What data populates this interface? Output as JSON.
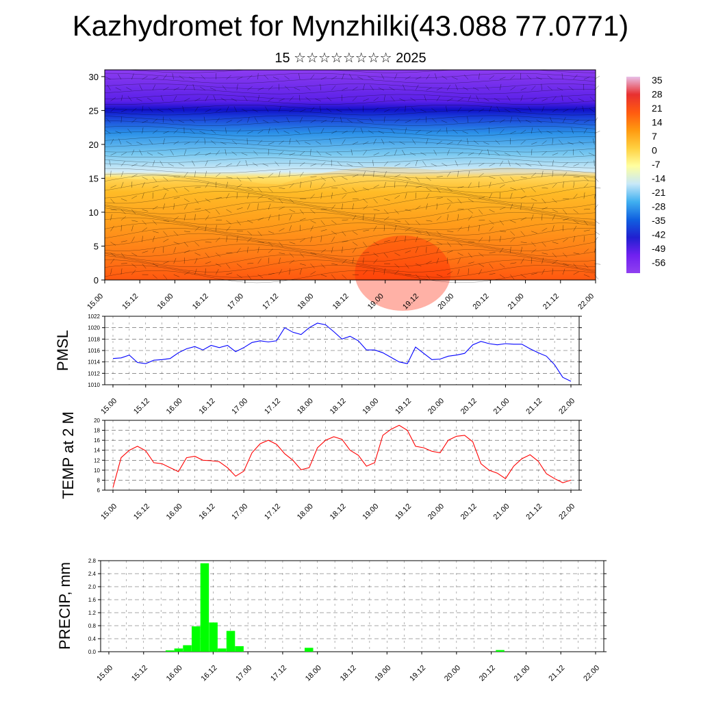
{
  "title": "Kazhydromet for Mynzhilki(43.088 77.0771)",
  "subtitle": "15 ☆☆☆☆☆☆☆☆ 2025",
  "colors": {
    "pmsl_line": "#0000ff",
    "temp_line": "#ff0000",
    "precip_bar": "#00ff00",
    "colorbar": [
      "#e8c0e8",
      "#e83030",
      "#ff5a10",
      "#ff9a10",
      "#ffd040",
      "#ffffa0",
      "#c8e8f8",
      "#40b0f0",
      "#1060e0",
      "#2020d0",
      "#7020f0",
      "#9040f0"
    ]
  },
  "chart_data": [
    {
      "type": "heatmap",
      "name": "temperature-wind-cross-section",
      "x_ticks": [
        "15.00",
        "15.12",
        "16.00",
        "16.12",
        "17.00",
        "17.12",
        "18.00",
        "18.12",
        "19.00",
        "19.12",
        "20.00",
        "20.12",
        "21.00",
        "21.12",
        "22.00"
      ],
      "y_ticks": [
        0,
        5,
        10,
        15,
        20,
        25,
        30
      ],
      "ylim": [
        0,
        31
      ],
      "colorbar_labels": [
        "35",
        "28",
        "21",
        "14",
        "7",
        "0",
        "-7",
        "-14",
        "-21",
        "-28",
        "-35",
        "-42",
        "-49",
        "-56"
      ],
      "colorbar_range": [
        -63,
        42
      ],
      "boundaries": {
        "x": [
          0,
          6,
          12,
          18,
          24,
          30,
          36,
          42,
          48,
          54,
          60,
          66,
          72,
          78,
          84,
          90,
          96,
          102,
          108,
          114,
          120,
          126,
          132,
          138,
          144,
          150,
          156,
          162,
          168
        ],
        "warm_top": [
          15.2,
          15.0,
          14.8,
          14.9,
          15.0,
          15.2,
          15.1,
          15.0,
          14.6,
          14.2,
          14.1,
          14.9,
          15.6,
          16.0,
          16.4,
          16.6,
          16.7,
          16.6,
          16.4,
          16.2,
          16.3,
          16.4,
          16.5,
          16.6,
          16.4,
          16.3,
          16.2,
          16.0,
          15.8
        ],
        "cold_band": [
          25.0,
          25.0,
          25.0,
          25.0,
          25.0,
          25.0,
          25.0,
          25.0,
          25.0,
          25.0,
          25.0,
          25.0,
          25.0,
          25.0,
          25.0,
          25.0,
          25.0,
          25.0,
          25.0,
          25.0,
          25.0,
          25.0,
          25.0,
          25.0,
          25.0,
          25.0,
          25.0,
          25.0,
          25.0
        ]
      },
      "grid": false
    },
    {
      "type": "line",
      "ylabel": "PMSL",
      "x_ticks": [
        "15.00",
        "15.12",
        "16.00",
        "16.12",
        "17.00",
        "17.12",
        "18.00",
        "18.12",
        "19.00",
        "19.12",
        "20.00",
        "20.12",
        "21.00",
        "21.12",
        "22.00"
      ],
      "y_ticks": [
        "1010",
        "1012",
        "1014",
        "1016",
        "1018",
        "1020",
        "1022"
      ],
      "ylim": [
        1010,
        1022
      ],
      "xlim": [
        0,
        168
      ],
      "grid": true,
      "series": [
        {
          "x": [
            0,
            3,
            6,
            9,
            12,
            15,
            18,
            21,
            24,
            27,
            30,
            33,
            36,
            39,
            42,
            45,
            48,
            51,
            54,
            57,
            60,
            63,
            66,
            69,
            72,
            75,
            78,
            81,
            84,
            87,
            90,
            93,
            96,
            99,
            102,
            105,
            108,
            111,
            114,
            117,
            120,
            123,
            126,
            129,
            132,
            135,
            138,
            141,
            144,
            147,
            150,
            153,
            156,
            159,
            162,
            165,
            168
          ],
          "values": [
            1014.6,
            1014.7,
            1015.2,
            1013.9,
            1013.7,
            1014.3,
            1014.4,
            1014.6,
            1015.6,
            1016.3,
            1016.7,
            1016.1,
            1016.9,
            1016.5,
            1016.9,
            1015.8,
            1016.5,
            1017.4,
            1017.7,
            1017.5,
            1017.7,
            1020.0,
            1019.2,
            1018.8,
            1020.0,
            1020.8,
            1020.5,
            1019.3,
            1018.0,
            1018.5,
            1017.7,
            1016.1,
            1016.1,
            1015.6,
            1014.8,
            1014.0,
            1013.7,
            1016.6,
            1015.5,
            1014.4,
            1014.5,
            1015.0,
            1015.2,
            1015.5,
            1017.0,
            1017.6,
            1017.2,
            1017.0,
            1017.2,
            1017.1,
            1017.1,
            1016.3,
            1015.6,
            1015.0,
            1013.5,
            1011.3,
            1010.6
          ]
        }
      ]
    },
    {
      "type": "line",
      "ylabel": "TEMP at 2 M",
      "x_ticks": [
        "15.00",
        "15.12",
        "16.00",
        "16.12",
        "17.00",
        "17.12",
        "18.00",
        "18.12",
        "19.00",
        "19.12",
        "20.00",
        "20.12",
        "21.00",
        "21.12",
        "22.00"
      ],
      "y_ticks": [
        "6",
        "8",
        "10",
        "12",
        "14",
        "16",
        "18",
        "20"
      ],
      "ylim": [
        6,
        20
      ],
      "xlim": [
        0,
        168
      ],
      "grid": true,
      "series": [
        {
          "x": [
            0,
            3,
            6,
            9,
            12,
            15,
            18,
            21,
            24,
            27,
            30,
            33,
            36,
            39,
            42,
            45,
            48,
            51,
            54,
            57,
            60,
            63,
            66,
            69,
            72,
            75,
            78,
            81,
            84,
            87,
            90,
            93,
            96,
            99,
            102,
            105,
            108,
            111,
            114,
            117,
            120,
            123,
            126,
            129,
            132,
            135,
            138,
            141,
            144,
            147,
            150,
            153,
            156,
            159,
            162,
            165,
            168
          ],
          "values": [
            6.5,
            12.5,
            14.0,
            14.8,
            13.9,
            11.5,
            11.3,
            10.5,
            9.7,
            12.5,
            12.8,
            12.0,
            11.9,
            11.7,
            10.5,
            8.8,
            9.8,
            13.5,
            15.3,
            16.0,
            15.2,
            13.3,
            12.0,
            10.1,
            10.5,
            14.5,
            16.0,
            16.7,
            16.2,
            14.0,
            13.0,
            10.8,
            11.5,
            17.0,
            18.2,
            19.0,
            18.0,
            14.8,
            14.5,
            13.8,
            13.5,
            16.0,
            16.8,
            17.0,
            15.7,
            11.3,
            10.0,
            9.4,
            8.3,
            10.8,
            12.3,
            13.1,
            11.8,
            9.3,
            8.3,
            7.5,
            8.0
          ]
        }
      ]
    },
    {
      "type": "bar",
      "ylabel": "PRECIP, mm",
      "x_ticks": [
        "15.00",
        "15.12",
        "16.00",
        "16.12",
        "17.00",
        "17.12",
        "18.00",
        "18.12",
        "19.00",
        "19.12",
        "20.00",
        "20.12",
        "21.00",
        "21.12",
        "22.00"
      ],
      "y_ticks": [
        "0.0",
        "0.4",
        "0.8",
        "1.2",
        "1.6",
        "2.0",
        "2.4",
        "2.8"
      ],
      "ylim": [
        0,
        2.8
      ],
      "xlim": [
        0,
        168
      ],
      "grid": true,
      "x": [
        21,
        24,
        27,
        30,
        33,
        36,
        39,
        42,
        45,
        69,
        135
      ],
      "values": [
        0.04,
        0.1,
        0.2,
        0.78,
        2.72,
        0.9,
        0.1,
        0.64,
        0.17,
        0.12,
        0.05
      ]
    }
  ]
}
